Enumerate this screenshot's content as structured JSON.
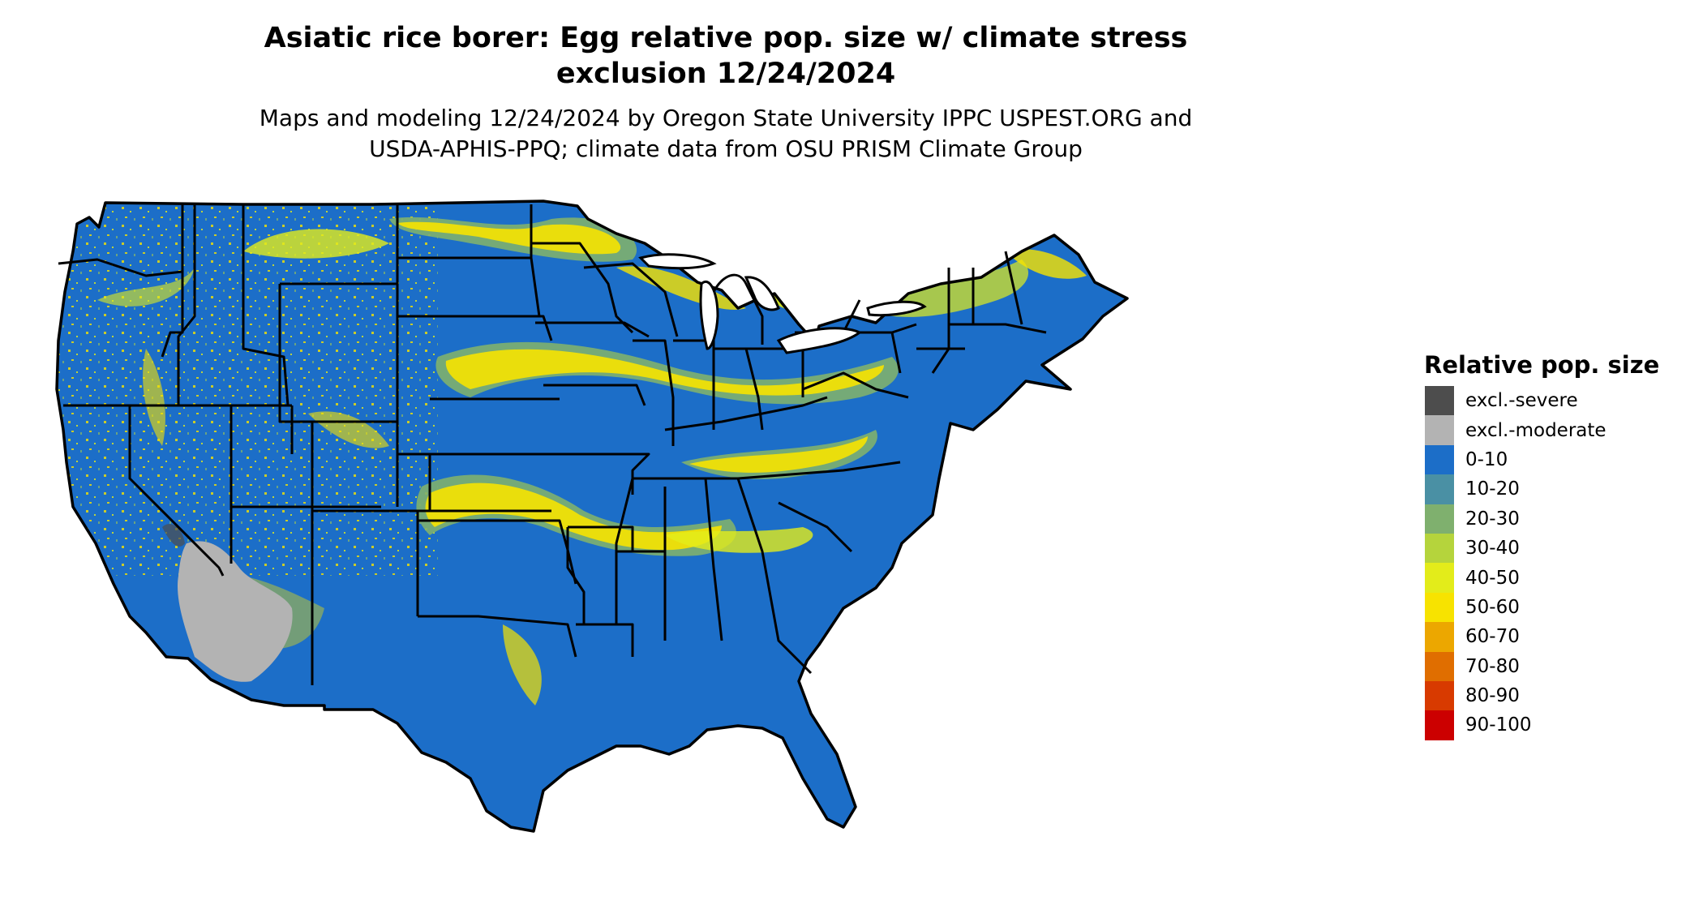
{
  "title": {
    "line1": "Asiatic rice borer: Egg relative pop. size w/ climate stress",
    "line2": "exclusion 12/24/2024"
  },
  "subtitle": {
    "line1": "Maps and modeling 12/24/2024 by Oregon State University IPPC USPEST.ORG and",
    "line2": "USDA-APHIS-PPQ; climate data from OSU PRISM Climate Group"
  },
  "legend": {
    "title": "Relative pop. size",
    "items": [
      {
        "label": "excl.-severe",
        "color": "#4d4d4d"
      },
      {
        "label": "excl.-moderate",
        "color": "#b3b3b3"
      },
      {
        "label": "0-10",
        "color": "#1c6ec8"
      },
      {
        "label": "10-20",
        "color": "#4a90a4"
      },
      {
        "label": "20-30",
        "color": "#7fb06e"
      },
      {
        "label": "30-40",
        "color": "#b5d43c"
      },
      {
        "label": "40-50",
        "color": "#e3ec1a"
      },
      {
        "label": "50-60",
        "color": "#f7e300"
      },
      {
        "label": "60-70",
        "color": "#eca700"
      },
      {
        "label": "70-80",
        "color": "#e06e00"
      },
      {
        "label": "80-90",
        "color": "#d83a00"
      },
      {
        "label": "90-100",
        "color": "#cc0000"
      }
    ]
  },
  "map": {
    "base_color": "#1c6ec8",
    "border_color": "#000000"
  }
}
